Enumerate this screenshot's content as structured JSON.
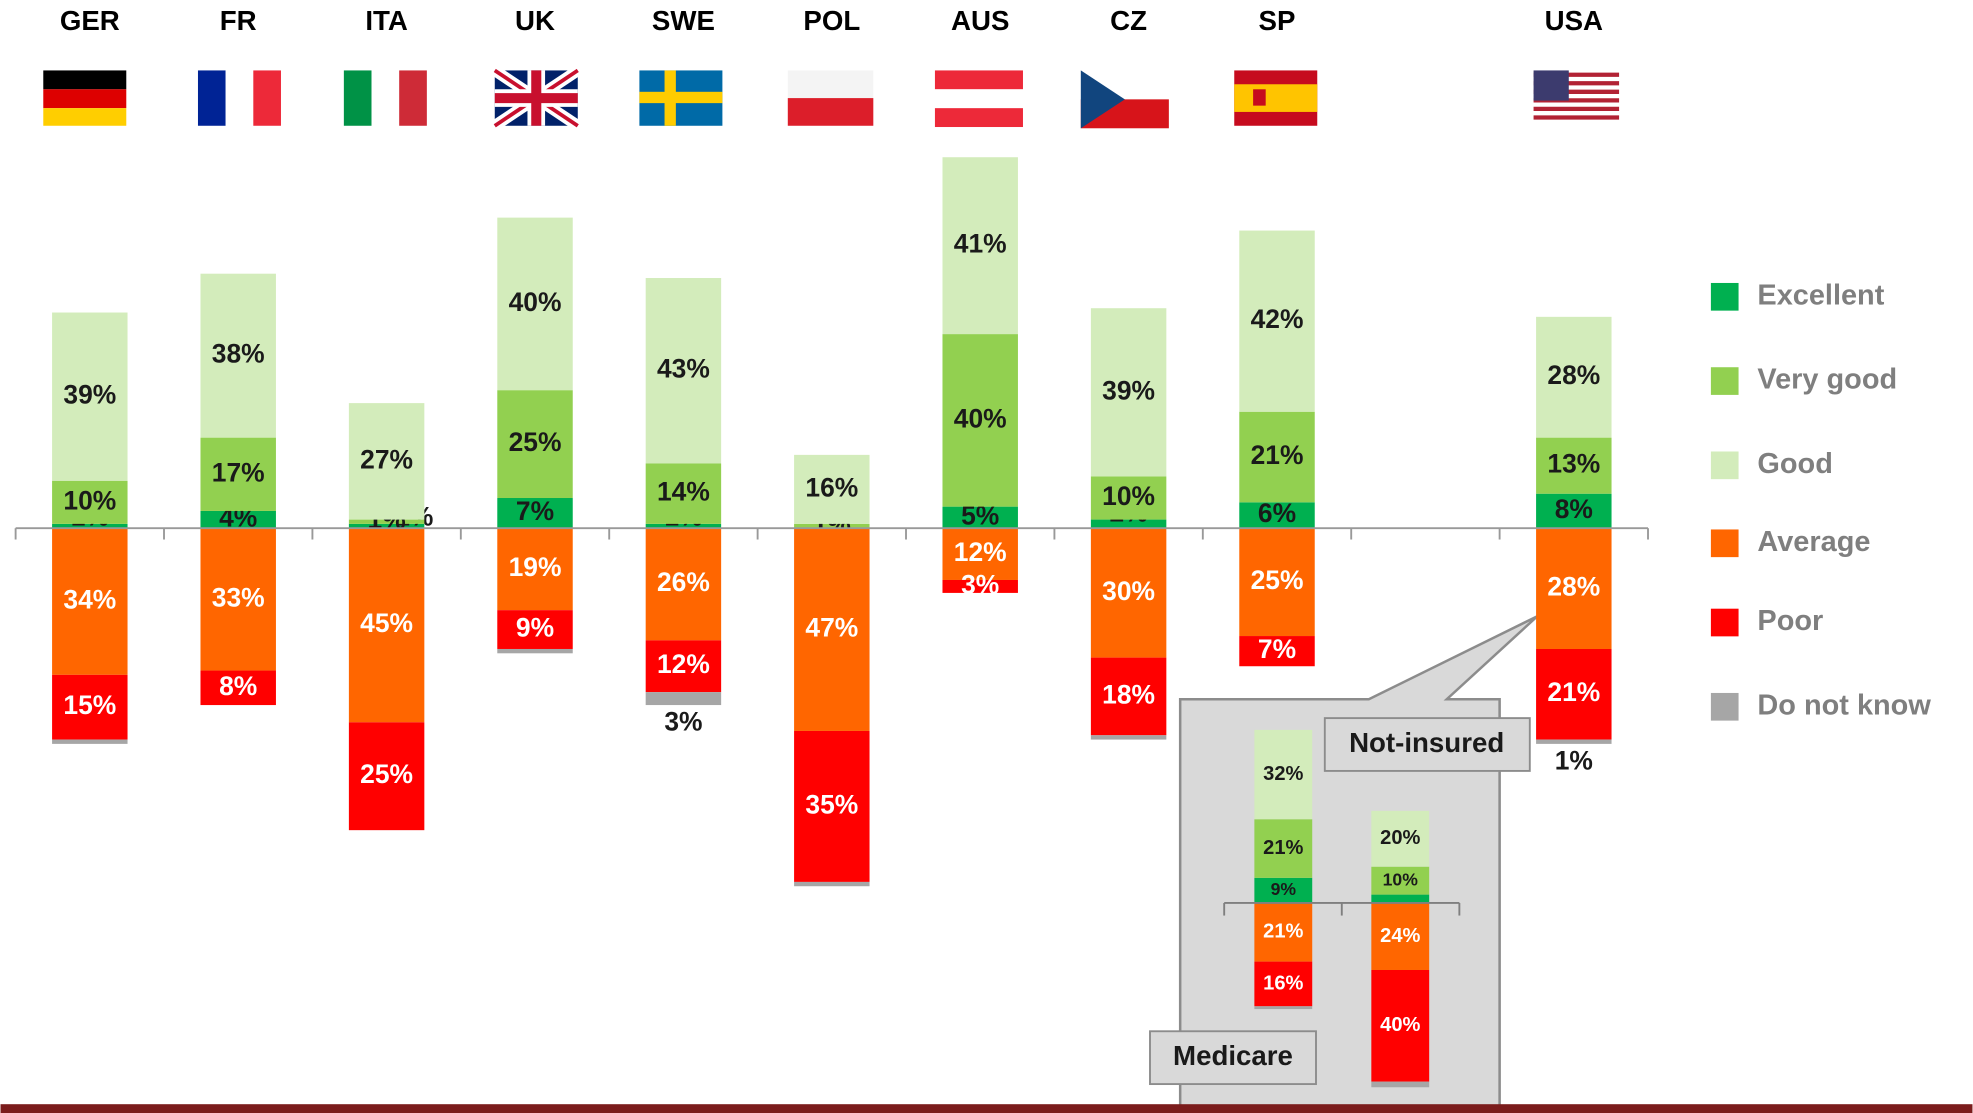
{
  "chart_data": [
    {
      "type": "bar",
      "categories": [
        "GER",
        "FR",
        "ITA",
        "UK",
        "SWE",
        "POL",
        "AUS",
        "CZ",
        "SP",
        null,
        "USA"
      ],
      "legend": "right",
      "series": [
        {
          "name": "Excellent",
          "color": "#00b050",
          "values": [
            1,
            4,
            1,
            7,
            1,
            0,
            5,
            2,
            6,
            null,
            8
          ],
          "value_labels": [
            "1%",
            "4%",
            "1%",
            "7%",
            "1%",
            null,
            "5%",
            "2%",
            "6%",
            null,
            "8%"
          ]
        },
        {
          "name": "Very good",
          "color": "#92d050",
          "values": [
            10,
            17,
            1,
            25,
            14,
            1,
            40,
            10,
            21,
            null,
            13
          ],
          "value_labels": [
            "10%",
            "17%",
            "1%",
            "25%",
            "14%",
            "1%",
            "40%",
            "10%",
            "21%",
            null,
            "13%"
          ]
        },
        {
          "name": "Good",
          "color": "#d3ecbb",
          "values": [
            39,
            38,
            27,
            40,
            43,
            16,
            41,
            39,
            42,
            null,
            28
          ],
          "value_labels": [
            "39%",
            "38%",
            "27%",
            "40%",
            "43%",
            "16%",
            "41%",
            "39%",
            "42%",
            null,
            "28%"
          ]
        },
        {
          "name": "Average",
          "color": "#ff6600",
          "values": [
            34,
            33,
            45,
            19,
            26,
            47,
            12,
            30,
            25,
            null,
            28
          ],
          "value_labels": [
            "34%",
            "33%",
            "45%",
            "19%",
            "26%",
            "47%",
            "12%",
            "30%",
            "25%",
            null,
            "28%"
          ]
        },
        {
          "name": "Poor",
          "color": "#ff0000",
          "values": [
            15,
            8,
            25,
            9,
            12,
            35,
            3,
            18,
            7,
            null,
            21
          ],
          "value_labels": [
            "15%",
            "8%",
            "25%",
            "9%",
            "12%",
            "35%",
            "3%",
            "18%",
            "7%",
            null,
            "21%"
          ]
        },
        {
          "name": "Do not know",
          "color": "#a6a6a6",
          "values": [
            1,
            0,
            0,
            1,
            3,
            1,
            0,
            1,
            0,
            null,
            1
          ],
          "value_labels": [
            null,
            null,
            null,
            null,
            "3%",
            null,
            null,
            null,
            null,
            null,
            "1%"
          ]
        }
      ]
    },
    {
      "type": "bar",
      "categories": [
        "Medicare",
        "Not-insured"
      ],
      "series": [
        {
          "color": "#00b050",
          "values": [
            9,
            3
          ],
          "value_labels": [
            "9%",
            "3%"
          ]
        },
        {
          "color": "#92d050",
          "values": [
            21,
            10
          ],
          "value_labels": [
            "21%",
            "10%"
          ]
        },
        {
          "color": "#d3ecbb",
          "values": [
            32,
            20
          ],
          "value_labels": [
            "32%",
            "20%"
          ]
        },
        {
          "color": "#ff6600",
          "values": [
            21,
            24
          ],
          "value_labels": [
            "21%",
            "24%"
          ]
        },
        {
          "color": "#ff0000",
          "values": [
            16,
            40
          ],
          "value_labels": [
            "16%",
            "40%"
          ]
        },
        {
          "color": "#a6a6a6",
          "values": [
            1,
            2
          ],
          "value_labels": [
            null,
            null
          ]
        }
      ]
    }
  ]
}
